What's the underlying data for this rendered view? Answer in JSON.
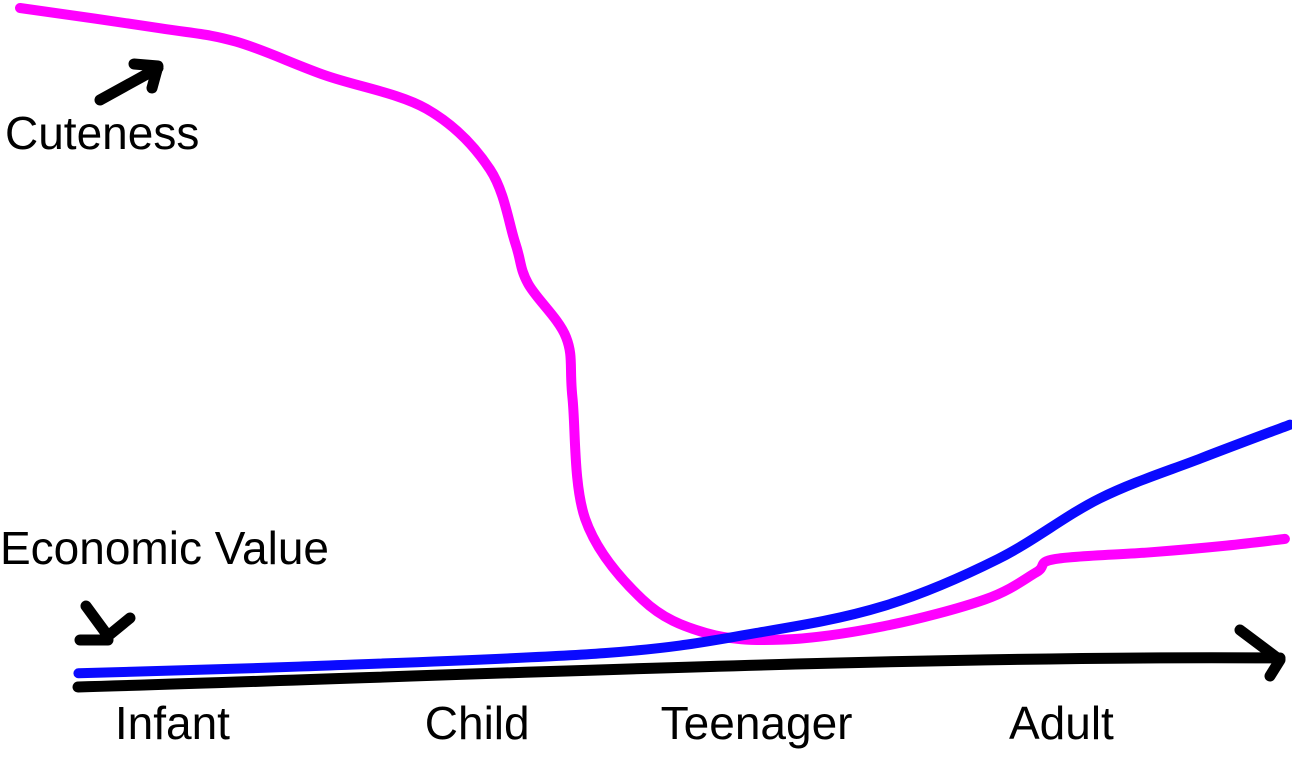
{
  "chart_data": {
    "type": "line",
    "xlim": [
      0,
      100
    ],
    "ylim": [
      0,
      100
    ],
    "xticks": [
      {
        "value": 12,
        "label": "Infant"
      },
      {
        "value": 36,
        "label": "Child"
      },
      {
        "value": 58,
        "label": "Teenager"
      },
      {
        "value": 82,
        "label": "Adult"
      }
    ],
    "series": [
      {
        "name": "Cuteness",
        "color": "#ff00ff",
        "x": [
          0,
          11,
          17,
          24,
          32,
          37,
          39,
          40,
          43,
          43.5,
          44.5,
          49,
          54,
          60,
          68,
          76,
          80,
          81.5,
          89,
          95,
          99.6
        ],
        "values": [
          100,
          97,
          95,
          90,
          85,
          76,
          65,
          59,
          51,
          42,
          24,
          12,
          7,
          6,
          8,
          12,
          16,
          18,
          19,
          20,
          21
        ]
      },
      {
        "name": "Economic Value",
        "color": "#0a0aff",
        "x": [
          4.6,
          22,
          46,
          58,
          68,
          77,
          85,
          93,
          100
        ],
        "values": [
          1,
          2,
          4,
          7,
          11,
          18,
          27,
          33,
          38
        ]
      }
    ]
  }
}
